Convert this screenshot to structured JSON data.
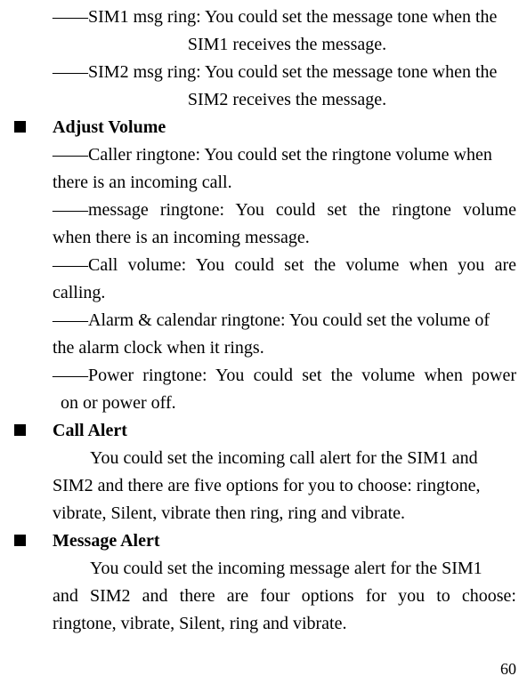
{
  "top": {
    "sim1_l1": "――SIM1 msg ring: You could set the message tone when the",
    "sim1_l2": "SIM1 receives the message.",
    "sim2_l1": "――SIM2 msg ring: You could set the message tone when the",
    "sim2_l2": "SIM2 receives the message."
  },
  "sections": {
    "adjust_volume": {
      "title": "Adjust Volume",
      "caller_l1": "――Caller ringtone: You could set the ringtone volume when",
      "caller_l2": "there is an incoming call.",
      "msg_l1": "――message ringtone: You could set the ringtone volume",
      "msg_l2": "when there is an incoming message.",
      "call_l1": "――Call volume: You could set the volume when you are",
      "call_l2": "calling.",
      "alarm_l1": "――Alarm & calendar ringtone: You could set the volume of",
      "alarm_l2": "the alarm clock when it rings.",
      "power_l1": "――Power ringtone: You could set the volume when power",
      "power_l2": "on or power off."
    },
    "call_alert": {
      "title": "Call Alert",
      "p_l1": "You could set the incoming call alert for the SIM1 and",
      "p_l2": "SIM2 and there are five options for you to choose: ringtone,",
      "p_l3": "vibrate, Silent, vibrate then ring, ring and vibrate."
    },
    "message_alert": {
      "title": "Message Alert",
      "p_l1": "You could set the incoming message alert for the SIM1",
      "p_l2": "and SIM2 and there are four options for you to choose:",
      "p_l3": "ringtone, vibrate, Silent, ring and vibrate."
    }
  },
  "page_number": "60"
}
